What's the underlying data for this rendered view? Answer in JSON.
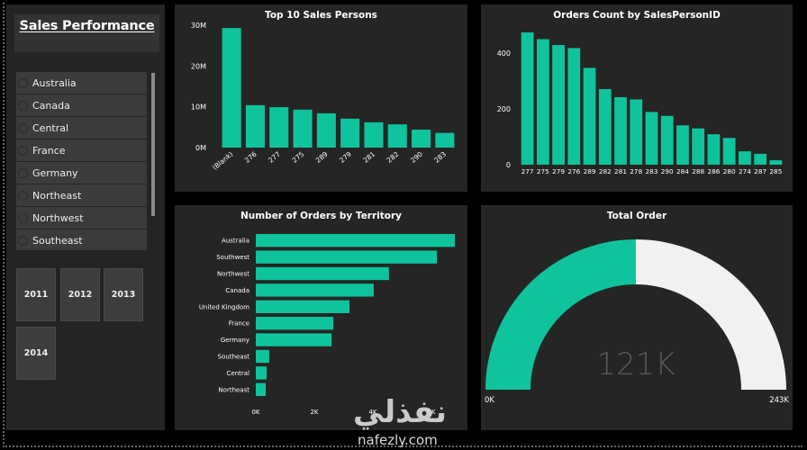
{
  "sidebar": {
    "title": "Sales Performance",
    "territory_slicer": [
      "Australia",
      "Canada",
      "Central",
      "France",
      "Germany",
      "Northeast",
      "Northwest",
      "Southeast"
    ],
    "years": [
      "2011",
      "2012",
      "2013",
      "2014"
    ]
  },
  "colors": {
    "accent": "#0fc39c",
    "gauge_remaining": "#f2f1f0",
    "panel_bg": "#252525",
    "page_bg": "#000000",
    "gauge_value_text": "#5a5a5a"
  },
  "watermark": {
    "arabic": "نفذلي",
    "latin": "nafezly.com"
  },
  "chart_data": [
    {
      "id": "top10",
      "type": "bar",
      "title": "Top 10 Sales Persons",
      "categories": [
        "(Blank)",
        "276",
        "277",
        "275",
        "289",
        "279",
        "281",
        "282",
        "290",
        "283"
      ],
      "values": [
        29.3,
        10.4,
        9.9,
        9.3,
        8.4,
        7.1,
        6.2,
        5.7,
        4.4,
        3.6
      ],
      "value_unit": "M",
      "ylim": [
        0,
        30
      ],
      "yticks": [
        0,
        10,
        20,
        30
      ],
      "ytick_labels": [
        "0M",
        "10M",
        "20M",
        "30M"
      ],
      "xlabel": "",
      "ylabel": "",
      "grid": false,
      "legend": "none"
    },
    {
      "id": "orders",
      "type": "bar",
      "title": "Orders Count by SalesPersonID",
      "categories": [
        "277",
        "275",
        "279",
        "276",
        "289",
        "282",
        "281",
        "278",
        "283",
        "290",
        "284",
        "288",
        "286",
        "280",
        "274",
        "287",
        "285"
      ],
      "values": [
        474,
        450,
        429,
        418,
        347,
        271,
        242,
        234,
        189,
        175,
        141,
        130,
        109,
        96,
        48,
        39,
        16
      ],
      "ylim": [
        0,
        500
      ],
      "yticks": [
        0,
        200,
        400
      ],
      "ytick_labels": [
        "0",
        "200",
        "400"
      ],
      "xlabel": "",
      "ylabel": "",
      "grid": false,
      "legend": "none"
    },
    {
      "id": "territory",
      "type": "bar",
      "orientation": "horizontal",
      "title": "Number of Orders by Territory",
      "categories": [
        "Australia",
        "Southwest",
        "Northwest",
        "Canada",
        "United Kingdom",
        "France",
        "Germany",
        "Southeast",
        "Central",
        "Northeast"
      ],
      "values": [
        6800,
        6190,
        4550,
        4030,
        3200,
        2650,
        2590,
        460,
        370,
        340
      ],
      "xlim": [
        0,
        6800
      ],
      "xticks": [
        0,
        2000,
        4000,
        6000
      ],
      "xtick_labels": [
        "0K",
        "2K",
        "4K",
        "6K"
      ],
      "xlabel": "",
      "ylabel": "",
      "grid": false,
      "legend": "none"
    },
    {
      "id": "gauge",
      "type": "gauge",
      "title": "Total Order",
      "value": 121317,
      "value_label": "121K",
      "min": 0,
      "max": 242634,
      "min_label": "0K",
      "max_label": "243K"
    }
  ]
}
